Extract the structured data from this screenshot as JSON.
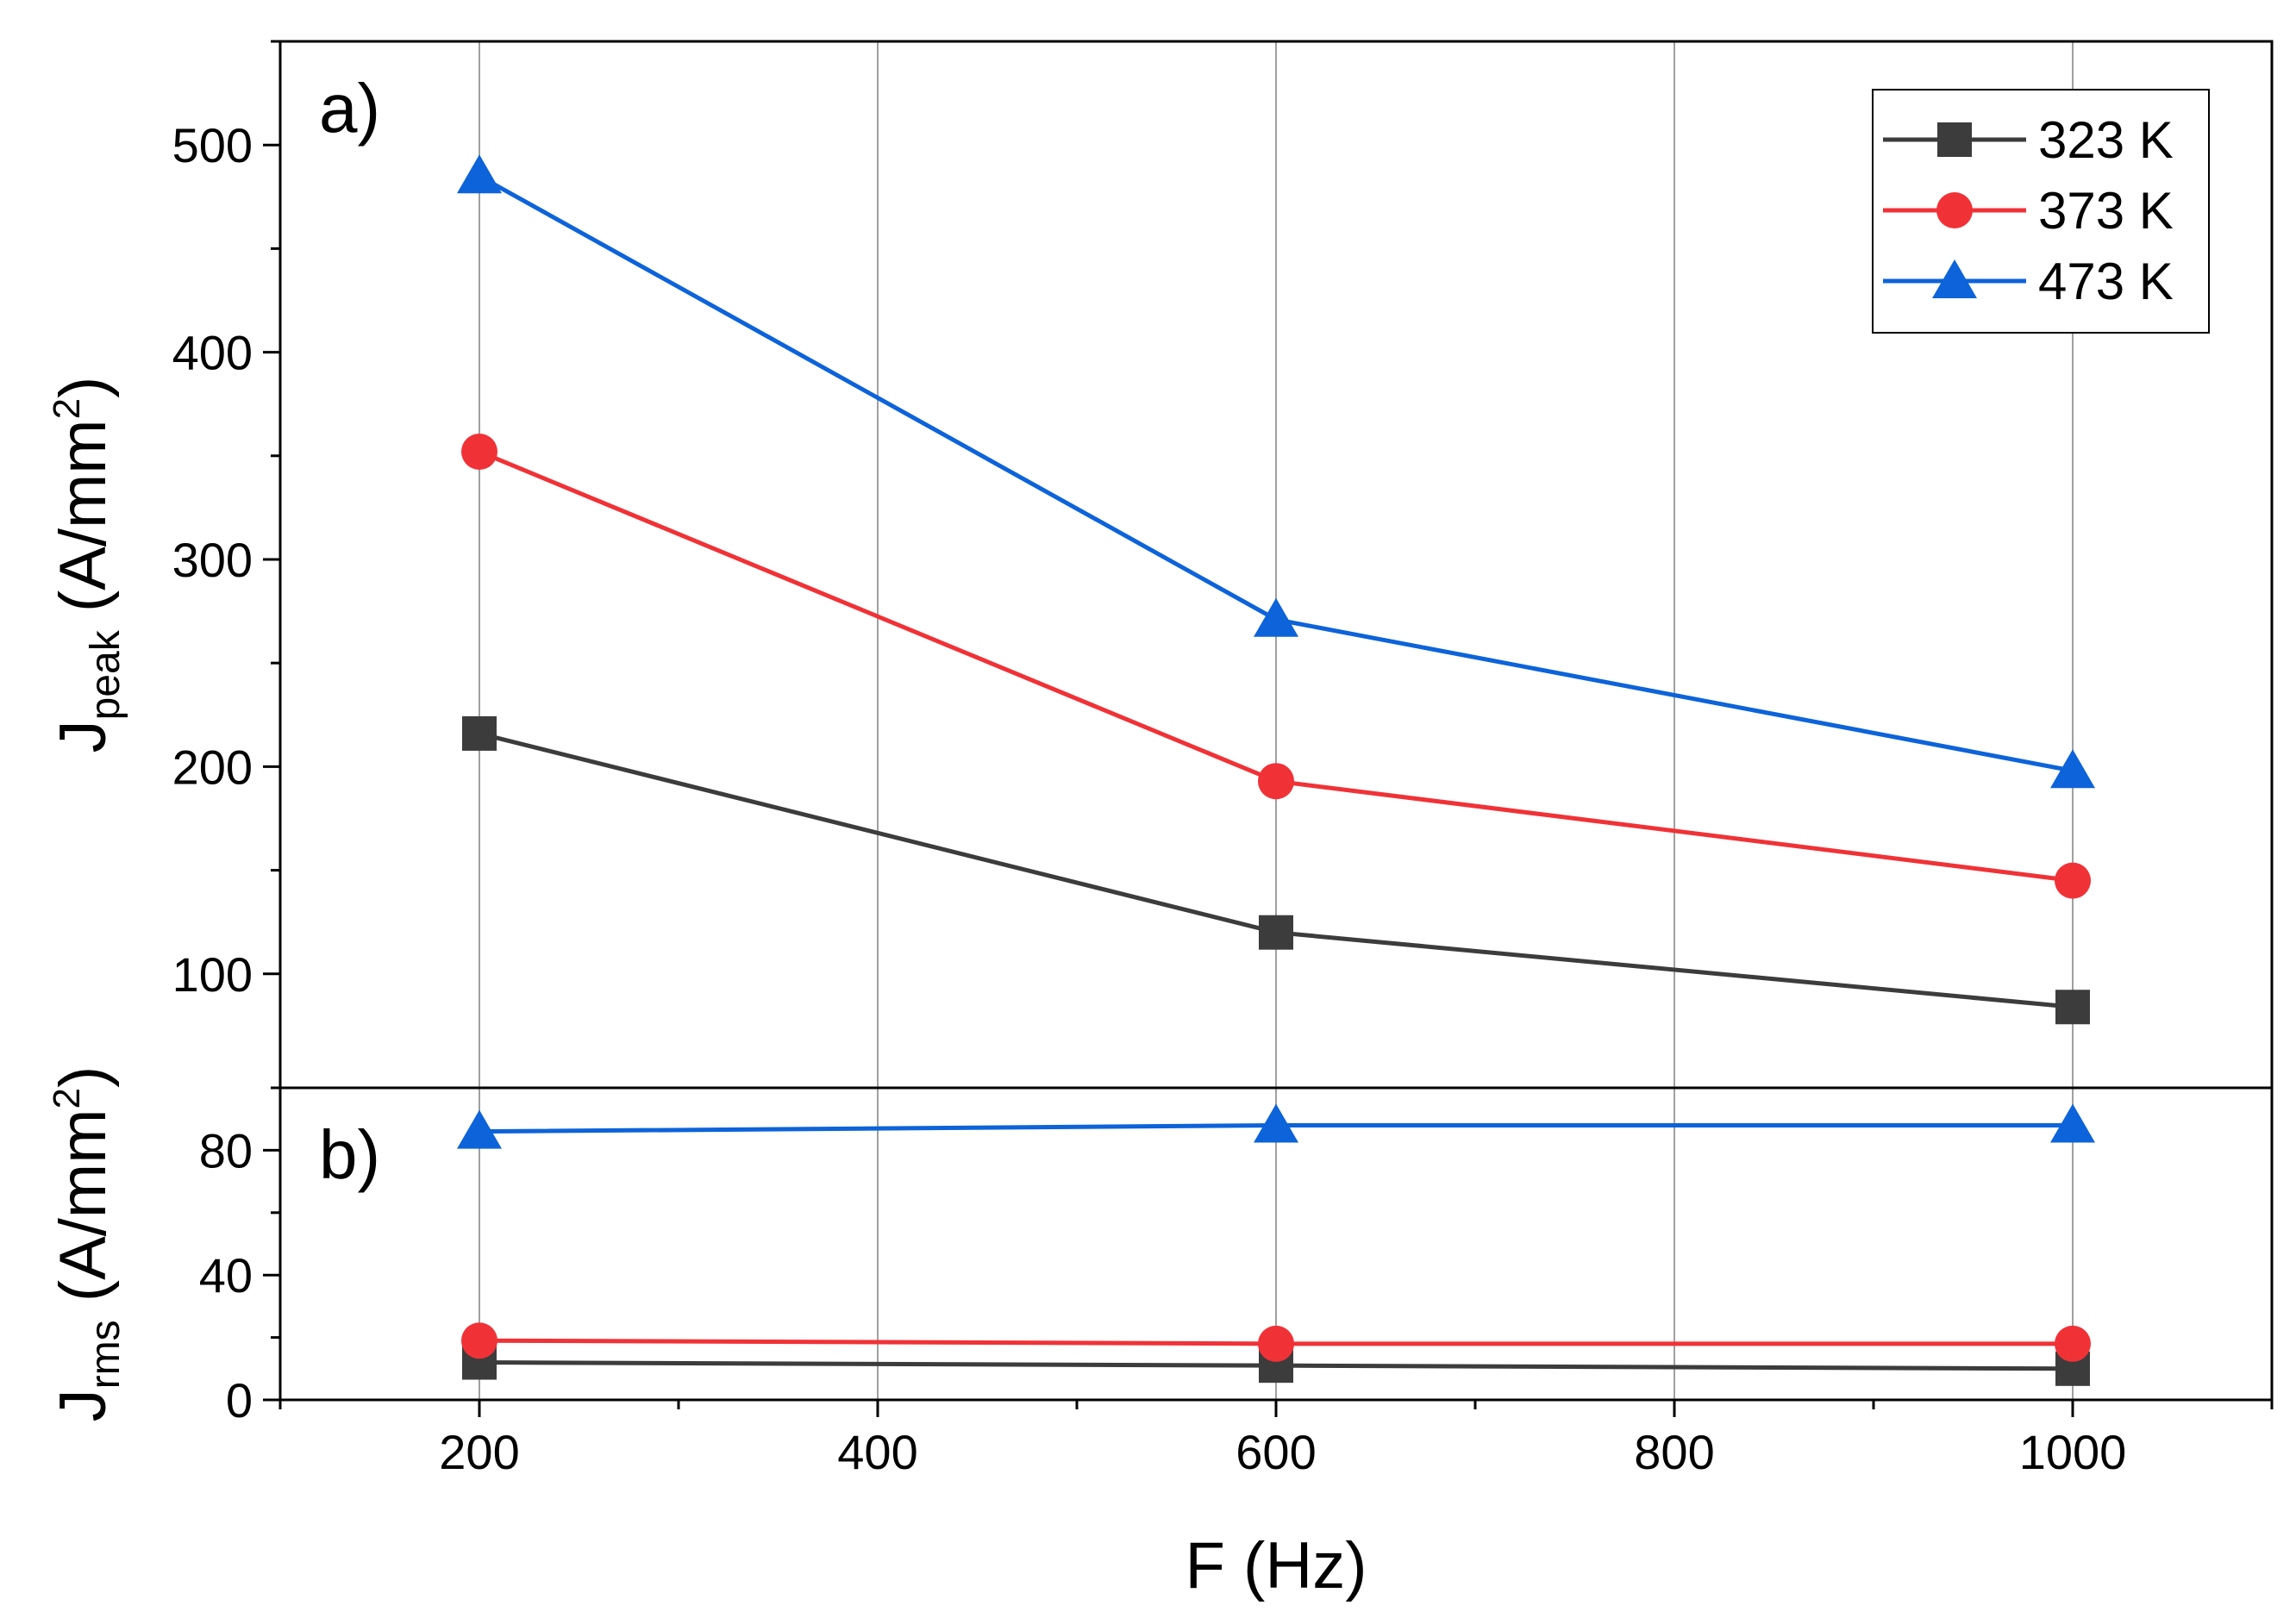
{
  "chart_data": [
    {
      "id": "top",
      "type": "line",
      "panel_label": "a)",
      "ylabel": {
        "main": "J",
        "sub": "peak",
        "unit_before_sup": " (A/mm",
        "sup": "2",
        "unit_after_sup": ")"
      },
      "xlim": [
        100,
        1100
      ],
      "ylim": [
        45,
        550
      ],
      "yticks": [
        100,
        200,
        300,
        400,
        500
      ],
      "yminor": [
        150,
        250,
        350,
        450,
        550
      ],
      "grid": "vertical",
      "x": [
        200,
        600,
        1000
      ],
      "series": [
        {
          "name": "323 K",
          "marker": "square",
          "color": "#3c3c3c",
          "values": [
            216,
            120,
            84
          ]
        },
        {
          "name": "373 K",
          "marker": "circle",
          "color": "#f03237",
          "values": [
            352,
            193,
            145
          ]
        },
        {
          "name": "473 K",
          "marker": "triangle",
          "color": "#0d63d9",
          "values": [
            485,
            271,
            198
          ]
        }
      ]
    },
    {
      "id": "bottom",
      "type": "line",
      "panel_label": "b)",
      "ylabel": {
        "main": "J",
        "sub": "rms",
        "unit_before_sup": " (A/mm",
        "sup": "2",
        "unit_after_sup": ")"
      },
      "xlim": [
        100,
        1100
      ],
      "ylim": [
        0,
        100
      ],
      "yticks": [
        0,
        40,
        80
      ],
      "yminor": [
        20,
        60,
        100
      ],
      "grid": "vertical",
      "x": [
        200,
        600,
        1000
      ],
      "series": [
        {
          "name": "323 K",
          "marker": "square",
          "color": "#3c3c3c",
          "values": [
            12,
            11,
            10
          ]
        },
        {
          "name": "373 K",
          "marker": "circle",
          "color": "#f03237",
          "values": [
            19,
            18,
            18
          ]
        },
        {
          "name": "473 K",
          "marker": "triangle",
          "color": "#0d63d9",
          "values": [
            86,
            88,
            88
          ]
        }
      ]
    }
  ],
  "shared_x_axis": {
    "xlabel": "F (Hz)",
    "xticks": [
      200,
      400,
      600,
      800,
      1000
    ],
    "xminor": [
      100,
      300,
      500,
      700,
      900,
      1100
    ]
  },
  "legend": {
    "placement": "top-right",
    "entries": [
      "323 K",
      "373 K",
      "473 K"
    ]
  }
}
